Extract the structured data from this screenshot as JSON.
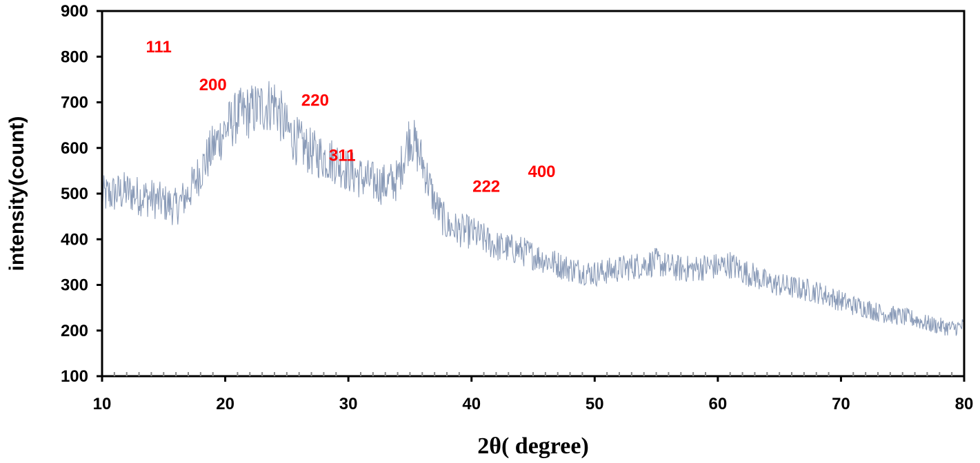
{
  "chart_data": {
    "type": "line",
    "title": "",
    "xlabel": "2θ( degree)",
    "ylabel": "intensity(count)",
    "xlim": [
      10,
      80
    ],
    "ylim": [
      100,
      900
    ],
    "xticks": [
      10,
      20,
      30,
      40,
      50,
      60,
      70,
      80
    ],
    "yticks": [
      100,
      200,
      300,
      400,
      500,
      600,
      700,
      800,
      900
    ],
    "grid": false,
    "legend": "none",
    "line_color": "#8a9bb8",
    "annotation_color": "#ff0000",
    "series": [
      {
        "x": [
          10,
          11,
          12,
          13,
          14,
          15,
          16,
          17,
          18,
          19,
          20,
          21,
          22,
          23,
          24,
          25,
          26,
          27,
          28,
          29,
          30,
          31,
          32,
          33,
          34,
          35,
          36,
          37,
          38,
          39,
          40,
          41,
          42,
          43,
          44,
          45,
          46,
          47,
          48,
          49,
          50,
          51,
          52,
          53,
          54,
          55,
          56,
          57,
          58,
          59,
          60,
          61,
          62,
          63,
          64,
          65,
          66,
          67,
          68,
          69,
          70,
          71,
          72,
          73,
          74,
          75,
          76,
          77,
          78,
          79,
          80
        ],
        "values": [
          495,
          500,
          505,
          495,
          490,
          480,
          470,
          500,
          550,
          600,
          640,
          670,
          680,
          690,
          700,
          640,
          610,
          590,
          580,
          570,
          550,
          535,
          525,
          520,
          530,
          630,
          570,
          480,
          430,
          420,
          415,
          400,
          385,
          380,
          375,
          365,
          355,
          345,
          335,
          330,
          325,
          330,
          335,
          340,
          345,
          350,
          340,
          335,
          335,
          340,
          340,
          345,
          330,
          320,
          305,
          300,
          295,
          290,
          285,
          275,
          265,
          255,
          250,
          240,
          235,
          230,
          225,
          215,
          210,
          205,
          210
        ]
      }
    ],
    "annotations": [
      {
        "text": "111",
        "x": 14.6,
        "y": 823
      },
      {
        "text": "200",
        "x": 19.0,
        "y": 740
      },
      {
        "text": "220",
        "x": 27.3,
        "y": 706
      },
      {
        "text": "311",
        "x": 29.5,
        "y": 585
      },
      {
        "text": "222",
        "x": 41.2,
        "y": 517
      },
      {
        "text": "400",
        "x": 45.7,
        "y": 550
      }
    ]
  }
}
